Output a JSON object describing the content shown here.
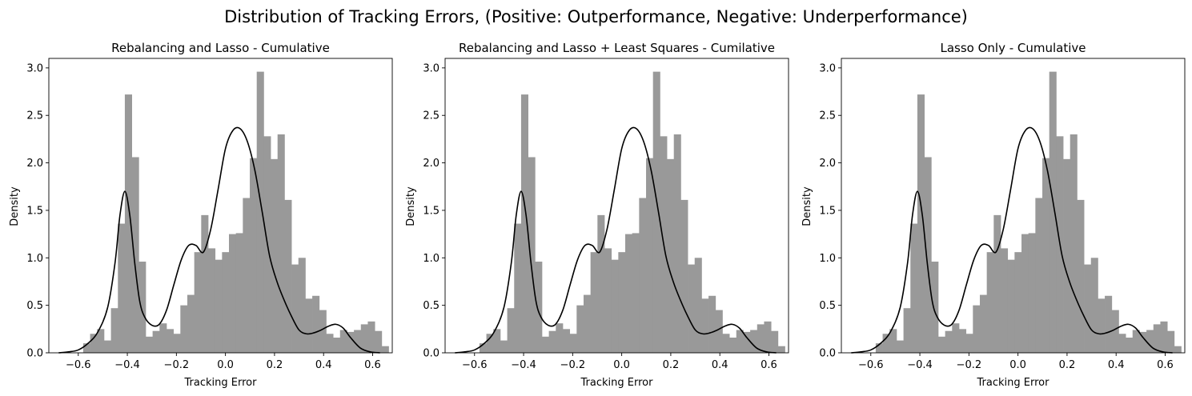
{
  "figure": {
    "suptitle": "Distribution of Tracking Errors, (Positive: Outperformance, Negative: Underperformance)"
  },
  "chart_data": [
    {
      "type": "bar",
      "subtype": "histogram-with-kde",
      "title": "Rebalancing and Lasso - Cumulative",
      "xlabel": "Tracking Error",
      "ylabel": "Density",
      "xlim": [
        -0.72,
        0.68
      ],
      "ylim": [
        0,
        3.1
      ],
      "xticks": [
        -0.6,
        -0.4,
        -0.2,
        0.0,
        0.2,
        0.4,
        0.6
      ],
      "xtick_labels": [
        "−0.6",
        "−0.4",
        "−0.2",
        "0.0",
        "0.2",
        "0.4",
        "0.6"
      ],
      "yticks": [
        0.0,
        0.5,
        1.0,
        1.5,
        2.0,
        2.5,
        3.0
      ],
      "ytick_labels": [
        "0.0",
        "0.5",
        "1.0",
        "1.5",
        "2.0",
        "2.5",
        "3.0"
      ],
      "grid": false,
      "bar_color": "#999999",
      "line_color": "#000000",
      "bins": {
        "start": -0.58,
        "width": 0.0283,
        "values": [
          0.1,
          0.2,
          0.25,
          0.13,
          0.47,
          1.36,
          2.72,
          2.06,
          0.96,
          0.17,
          0.23,
          0.31,
          0.25,
          0.2,
          0.5,
          0.61,
          1.06,
          1.45,
          1.1,
          0.98,
          1.06,
          1.25,
          1.26,
          1.63,
          2.05,
          2.96,
          2.28,
          2.04,
          2.3,
          1.61,
          0.93,
          1.0,
          0.57,
          0.6,
          0.45,
          0.2,
          0.16,
          0.24,
          0.22,
          0.24,
          0.3,
          0.33,
          0.23,
          0.07
        ]
      },
      "kde": {
        "x": [
          -0.68,
          -0.64,
          -0.6,
          -0.56,
          -0.52,
          -0.48,
          -0.45,
          -0.43,
          -0.41,
          -0.39,
          -0.37,
          -0.35,
          -0.33,
          -0.3,
          -0.27,
          -0.24,
          -0.21,
          -0.18,
          -0.15,
          -0.12,
          -0.09,
          -0.06,
          -0.03,
          0.0,
          0.03,
          0.06,
          0.09,
          0.12,
          0.15,
          0.18,
          0.21,
          0.24,
          0.27,
          0.3,
          0.33,
          0.36,
          0.39,
          0.42,
          0.45,
          0.48,
          0.51,
          0.55,
          0.59,
          0.63
        ],
        "y": [
          0.0,
          0.01,
          0.03,
          0.1,
          0.22,
          0.48,
          0.95,
          1.45,
          1.7,
          1.45,
          0.95,
          0.55,
          0.38,
          0.29,
          0.3,
          0.45,
          0.72,
          0.98,
          1.13,
          1.13,
          1.06,
          1.3,
          1.72,
          2.15,
          2.34,
          2.36,
          2.22,
          1.92,
          1.48,
          1.02,
          0.75,
          0.55,
          0.38,
          0.24,
          0.2,
          0.21,
          0.24,
          0.28,
          0.3,
          0.26,
          0.16,
          0.05,
          0.01,
          0.0
        ]
      }
    },
    {
      "type": "bar",
      "subtype": "histogram-with-kde",
      "title": "Rebalancing and Lasso + Least Squares - Cumilative",
      "xlabel": "Tracking Error",
      "ylabel": "Density",
      "xlim": [
        -0.72,
        0.68
      ],
      "ylim": [
        0,
        3.1
      ],
      "xticks": [
        -0.6,
        -0.4,
        -0.2,
        0.0,
        0.2,
        0.4,
        0.6
      ],
      "xtick_labels": [
        "−0.6",
        "−0.4",
        "−0.2",
        "0.0",
        "0.2",
        "0.4",
        "0.6"
      ],
      "yticks": [
        0.0,
        0.5,
        1.0,
        1.5,
        2.0,
        2.5,
        3.0
      ],
      "ytick_labels": [
        "0.0",
        "0.5",
        "1.0",
        "1.5",
        "2.0",
        "2.5",
        "3.0"
      ],
      "grid": false,
      "bar_color": "#999999",
      "line_color": "#000000",
      "bins": {
        "start": -0.58,
        "width": 0.0283,
        "values": [
          0.1,
          0.2,
          0.25,
          0.13,
          0.47,
          1.36,
          2.72,
          2.06,
          0.96,
          0.17,
          0.23,
          0.31,
          0.25,
          0.2,
          0.5,
          0.61,
          1.06,
          1.45,
          1.1,
          0.98,
          1.06,
          1.25,
          1.26,
          1.63,
          2.05,
          2.96,
          2.28,
          2.04,
          2.3,
          1.61,
          0.93,
          1.0,
          0.57,
          0.6,
          0.45,
          0.2,
          0.16,
          0.24,
          0.22,
          0.24,
          0.3,
          0.33,
          0.23,
          0.07
        ]
      },
      "kde": {
        "x": [
          -0.68,
          -0.64,
          -0.6,
          -0.56,
          -0.52,
          -0.48,
          -0.45,
          -0.43,
          -0.41,
          -0.39,
          -0.37,
          -0.35,
          -0.33,
          -0.3,
          -0.27,
          -0.24,
          -0.21,
          -0.18,
          -0.15,
          -0.12,
          -0.09,
          -0.06,
          -0.03,
          0.0,
          0.03,
          0.06,
          0.09,
          0.12,
          0.15,
          0.18,
          0.21,
          0.24,
          0.27,
          0.3,
          0.33,
          0.36,
          0.39,
          0.42,
          0.45,
          0.48,
          0.51,
          0.55,
          0.59,
          0.63
        ],
        "y": [
          0.0,
          0.01,
          0.03,
          0.1,
          0.22,
          0.48,
          0.95,
          1.45,
          1.7,
          1.45,
          0.95,
          0.55,
          0.38,
          0.29,
          0.3,
          0.45,
          0.72,
          0.98,
          1.13,
          1.13,
          1.06,
          1.3,
          1.72,
          2.15,
          2.34,
          2.36,
          2.22,
          1.92,
          1.48,
          1.02,
          0.75,
          0.55,
          0.38,
          0.24,
          0.2,
          0.21,
          0.24,
          0.28,
          0.3,
          0.26,
          0.16,
          0.05,
          0.01,
          0.0
        ]
      }
    },
    {
      "type": "bar",
      "subtype": "histogram-with-kde",
      "title": "Lasso Only - Cumulative",
      "xlabel": "Tracking Error",
      "ylabel": "Density",
      "xlim": [
        -0.72,
        0.68
      ],
      "ylim": [
        0,
        3.1
      ],
      "xticks": [
        -0.6,
        -0.4,
        -0.2,
        0.0,
        0.2,
        0.4,
        0.6
      ],
      "xtick_labels": [
        "−0.6",
        "−0.4",
        "−0.2",
        "0.0",
        "0.2",
        "0.4",
        "0.6"
      ],
      "yticks": [
        0.0,
        0.5,
        1.0,
        1.5,
        2.0,
        2.5,
        3.0
      ],
      "ytick_labels": [
        "0.0",
        "0.5",
        "1.0",
        "1.5",
        "2.0",
        "2.5",
        "3.0"
      ],
      "grid": false,
      "bar_color": "#999999",
      "line_color": "#000000",
      "bins": {
        "start": -0.58,
        "width": 0.0283,
        "values": [
          0.1,
          0.2,
          0.25,
          0.13,
          0.47,
          1.36,
          2.72,
          2.06,
          0.96,
          0.17,
          0.23,
          0.31,
          0.25,
          0.2,
          0.5,
          0.61,
          1.06,
          1.45,
          1.1,
          0.98,
          1.06,
          1.25,
          1.26,
          1.63,
          2.05,
          2.96,
          2.28,
          2.04,
          2.3,
          1.61,
          0.93,
          1.0,
          0.57,
          0.6,
          0.45,
          0.2,
          0.16,
          0.24,
          0.22,
          0.24,
          0.3,
          0.33,
          0.23,
          0.07
        ]
      },
      "kde": {
        "x": [
          -0.68,
          -0.64,
          -0.6,
          -0.56,
          -0.52,
          -0.48,
          -0.45,
          -0.43,
          -0.41,
          -0.39,
          -0.37,
          -0.35,
          -0.33,
          -0.3,
          -0.27,
          -0.24,
          -0.21,
          -0.18,
          -0.15,
          -0.12,
          -0.09,
          -0.06,
          -0.03,
          0.0,
          0.03,
          0.06,
          0.09,
          0.12,
          0.15,
          0.18,
          0.21,
          0.24,
          0.27,
          0.3,
          0.33,
          0.36,
          0.39,
          0.42,
          0.45,
          0.48,
          0.51,
          0.55,
          0.59,
          0.63
        ],
        "y": [
          0.0,
          0.01,
          0.03,
          0.1,
          0.22,
          0.48,
          0.95,
          1.45,
          1.7,
          1.45,
          0.95,
          0.55,
          0.38,
          0.29,
          0.3,
          0.45,
          0.72,
          0.98,
          1.13,
          1.13,
          1.06,
          1.3,
          1.72,
          2.15,
          2.34,
          2.36,
          2.22,
          1.92,
          1.48,
          1.02,
          0.75,
          0.55,
          0.38,
          0.24,
          0.2,
          0.21,
          0.24,
          0.28,
          0.3,
          0.26,
          0.16,
          0.05,
          0.01,
          0.0
        ]
      }
    }
  ]
}
